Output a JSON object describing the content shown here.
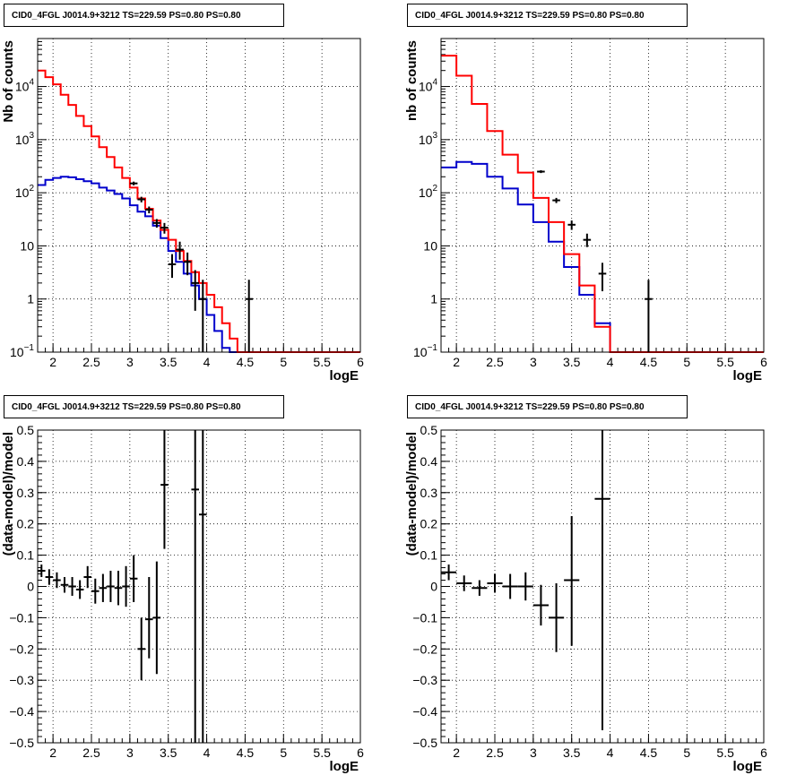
{
  "colors": {
    "data": "#000000",
    "total_model": "#ff0000",
    "source_model": "#0000cc",
    "grid": "#000000"
  },
  "chart_data": [
    {
      "id": "counts-fine",
      "type": "line",
      "title": "CID0_4FGL J0014.9+3212 TS=229.59 PS=0.80 PS=0.80",
      "xlabel": "logE",
      "ylabel": "Nb of counts",
      "yscale": "log",
      "xlim": [
        1.8,
        6.0
      ],
      "ylim": [
        0.1,
        80000
      ],
      "grid": true,
      "bin_edges": [
        1.8,
        1.9,
        2.0,
        2.1,
        2.2,
        2.3,
        2.4,
        2.5,
        2.6,
        2.7,
        2.8,
        2.9,
        3.0,
        3.1,
        3.2,
        3.3,
        3.4,
        3.5,
        3.6,
        3.7,
        3.8,
        3.9,
        4.0,
        4.1,
        4.2,
        4.3,
        4.4,
        4.5,
        4.6,
        4.7,
        4.8,
        4.9,
        5.0,
        5.1,
        5.2,
        5.3,
        5.4,
        5.5,
        5.6,
        5.7,
        5.8,
        5.9,
        6.0
      ],
      "series": [
        {
          "key": "total_model",
          "values": [
            20000,
            15000,
            11000,
            7000,
            4500,
            2800,
            1800,
            1150,
            720,
            470,
            300,
            190,
            125,
            78,
            50,
            30,
            20,
            13,
            8,
            5.2,
            3.2,
            2.0,
            1.2,
            0.7,
            0.35,
            0.18,
            0.09,
            0.09,
            0.09,
            0.09,
            0.09,
            0.09,
            0.09,
            0.09,
            0.09,
            0.09,
            0.09,
            0.09,
            0.09,
            0.09,
            0.09,
            0.09
          ]
        },
        {
          "key": "source_model",
          "values": [
            140,
            175,
            190,
            200,
            195,
            180,
            165,
            150,
            125,
            110,
            95,
            78,
            58,
            44,
            36,
            24,
            14,
            8,
            5.0,
            3.0,
            1.8,
            1.0,
            0.5,
            0.25,
            0.12,
            0.1,
            0.1,
            0.1,
            0.1,
            0.1,
            0.1,
            0.1,
            0.1,
            0.1,
            0.1,
            0.1,
            0.1,
            0.1,
            0.1,
            0.1,
            0.1,
            0.1
          ]
        }
      ],
      "points": [
        {
          "x": 3.05,
          "y": 150,
          "lo": 138,
          "hi": 162
        },
        {
          "x": 3.15,
          "y": 75,
          "lo": 66,
          "hi": 84
        },
        {
          "x": 3.25,
          "y": 48,
          "lo": 41,
          "hi": 55
        },
        {
          "x": 3.35,
          "y": 27,
          "lo": 22,
          "hi": 32
        },
        {
          "x": 3.45,
          "y": 22,
          "lo": 17,
          "hi": 27
        },
        {
          "x": 3.55,
          "y": 4.5,
          "lo": 2.5,
          "hi": 7
        },
        {
          "x": 3.65,
          "y": 8.5,
          "lo": 5.5,
          "hi": 12
        },
        {
          "x": 3.75,
          "y": 5.0,
          "lo": 2.8,
          "hi": 7.5
        },
        {
          "x": 3.85,
          "y": 2.0,
          "lo": 0.6,
          "hi": 3.5
        },
        {
          "x": 3.95,
          "y": 1.0,
          "lo": 0.1,
          "hi": 2.3
        },
        {
          "x": 4.55,
          "y": 1.0,
          "lo": 0.1,
          "hi": 2.3
        }
      ]
    },
    {
      "id": "counts-coarse",
      "type": "line",
      "title": "CID0_4FGL J0014.9+3212 TS=229.59 PS=0.80 PS=0.80",
      "xlabel": "logE",
      "ylabel": "nb of counts",
      "yscale": "log",
      "xlim": [
        1.8,
        6.0
      ],
      "ylim": [
        0.1,
        80000
      ],
      "grid": true,
      "bin_edges": [
        1.8,
        2.0,
        2.2,
        2.4,
        2.6,
        2.8,
        3.0,
        3.2,
        3.4,
        3.6,
        3.8,
        4.0,
        4.2,
        4.4,
        4.6,
        4.8,
        5.0,
        5.2,
        5.4,
        5.6,
        5.8,
        6.0
      ],
      "series": [
        {
          "key": "total_model",
          "values": [
            38000,
            16000,
            4700,
            1450,
            520,
            240,
            80,
            28,
            7,
            1.8,
            0.3,
            0.09,
            0.09,
            0.09,
            0.09,
            0.09,
            0.09,
            0.09,
            0.09,
            0.09,
            0.09
          ]
        },
        {
          "key": "source_model",
          "values": [
            300,
            380,
            350,
            200,
            120,
            60,
            28,
            12,
            4,
            1.2,
            0.35,
            0.1,
            0.1,
            0.1,
            0.1,
            0.1,
            0.1,
            0.1,
            0.1,
            0.1,
            0.1
          ]
        }
      ],
      "points": [
        {
          "x": 3.1,
          "y": 250,
          "lo": 235,
          "hi": 265
        },
        {
          "x": 3.3,
          "y": 72,
          "lo": 64,
          "hi": 80
        },
        {
          "x": 3.5,
          "y": 25,
          "lo": 20,
          "hi": 30
        },
        {
          "x": 3.7,
          "y": 13,
          "lo": 9.5,
          "hi": 17
        },
        {
          "x": 3.9,
          "y": 3.0,
          "lo": 1.4,
          "hi": 4.8
        },
        {
          "x": 4.5,
          "y": 1.0,
          "lo": 0.1,
          "hi": 2.3
        }
      ]
    },
    {
      "id": "residuals-fine",
      "type": "scatter",
      "title": "CID0_4FGL J0014.9+3212 TS=229.59 PS=0.80 PS=0.80",
      "xlabel": "logE",
      "ylabel": "(data-model)/model",
      "yscale": "linear",
      "xlim": [
        1.8,
        6.0
      ],
      "ylim": [
        -0.5,
        0.5
      ],
      "grid": true,
      "halfwidth": 0.05,
      "points": [
        {
          "x": 1.85,
          "y": 0.05,
          "lo": 0.03,
          "hi": 0.07
        },
        {
          "x": 1.95,
          "y": 0.03,
          "lo": 0.005,
          "hi": 0.055
        },
        {
          "x": 2.05,
          "y": 0.02,
          "lo": -0.005,
          "hi": 0.045
        },
        {
          "x": 2.15,
          "y": 0.005,
          "lo": -0.02,
          "hi": 0.03
        },
        {
          "x": 2.25,
          "y": 0.0,
          "lo": -0.03,
          "hi": 0.03
        },
        {
          "x": 2.35,
          "y": -0.01,
          "lo": -0.04,
          "hi": 0.02
        },
        {
          "x": 2.45,
          "y": 0.03,
          "lo": -0.005,
          "hi": 0.065
        },
        {
          "x": 2.55,
          "y": -0.015,
          "lo": -0.055,
          "hi": 0.025
        },
        {
          "x": 2.65,
          "y": -0.005,
          "lo": -0.05,
          "hi": 0.04
        },
        {
          "x": 2.75,
          "y": 0.0,
          "lo": -0.05,
          "hi": 0.05
        },
        {
          "x": 2.85,
          "y": -0.005,
          "lo": -0.06,
          "hi": 0.05
        },
        {
          "x": 2.95,
          "y": 0.0,
          "lo": -0.065,
          "hi": 0.065
        },
        {
          "x": 3.05,
          "y": 0.025,
          "lo": -0.05,
          "hi": 0.1
        },
        {
          "x": 3.15,
          "y": -0.2,
          "lo": -0.3,
          "hi": -0.1
        },
        {
          "x": 3.25,
          "y": -0.105,
          "lo": -0.23,
          "hi": 0.03
        },
        {
          "x": 3.35,
          "y": -0.1,
          "lo": -0.28,
          "hi": 0.08
        },
        {
          "x": 3.45,
          "y": 0.325,
          "lo": 0.12,
          "hi": 0.5
        },
        {
          "x": 3.85,
          "y": 0.31,
          "lo": -0.5,
          "hi": 0.5
        },
        {
          "x": 3.95,
          "y": 0.23,
          "lo": -0.5,
          "hi": 0.5
        }
      ]
    },
    {
      "id": "residuals-coarse",
      "type": "scatter",
      "title": "CID0_4FGL J0014.9+3212 TS=229.59 PS=0.80 PS=0.80",
      "xlabel": "logE",
      "ylabel": "(data-model)/model",
      "yscale": "linear",
      "xlim": [
        1.8,
        6.0
      ],
      "ylim": [
        -0.5,
        0.5
      ],
      "grid": true,
      "halfwidth": 0.1,
      "points": [
        {
          "x": 1.9,
          "y": 0.045,
          "lo": 0.02,
          "hi": 0.07
        },
        {
          "x": 2.1,
          "y": 0.01,
          "lo": -0.015,
          "hi": 0.035
        },
        {
          "x": 2.3,
          "y": -0.005,
          "lo": -0.03,
          "hi": 0.02
        },
        {
          "x": 2.5,
          "y": 0.01,
          "lo": -0.02,
          "hi": 0.04
        },
        {
          "x": 2.7,
          "y": 0.0,
          "lo": -0.04,
          "hi": 0.04
        },
        {
          "x": 2.9,
          "y": 0.0,
          "lo": -0.045,
          "hi": 0.045
        },
        {
          "x": 3.1,
          "y": -0.06,
          "lo": -0.125,
          "hi": 0.005
        },
        {
          "x": 3.3,
          "y": -0.1,
          "lo": -0.21,
          "hi": 0.01
        },
        {
          "x": 3.5,
          "y": 0.02,
          "lo": -0.19,
          "hi": 0.225
        },
        {
          "x": 3.9,
          "y": 0.28,
          "lo": -0.46,
          "hi": 0.5
        }
      ]
    }
  ],
  "ticks": {
    "x": [
      "2",
      "2.5",
      "3",
      "3.5",
      "4",
      "4.5",
      "5",
      "5.5",
      "6"
    ],
    "x_values": [
      2,
      2.5,
      3,
      3.5,
      4,
      4.5,
      5,
      5.5,
      6
    ],
    "log_y": [
      {
        "value": 0.1,
        "base": "10",
        "exp": "−1"
      },
      {
        "value": 1,
        "base": "1",
        "exp": ""
      },
      {
        "value": 10,
        "base": "10",
        "exp": ""
      },
      {
        "value": 100,
        "base": "10",
        "exp": "2"
      },
      {
        "value": 1000,
        "base": "10",
        "exp": "3"
      },
      {
        "value": 10000,
        "base": "10",
        "exp": "4"
      }
    ],
    "lin_y": [
      "−0.5",
      "−0.4",
      "−0.3",
      "−0.2",
      "−0.1",
      "0",
      "0.1",
      "0.2",
      "0.3",
      "0.4",
      "0.5"
    ],
    "lin_y_values": [
      -0.5,
      -0.4,
      -0.3,
      -0.2,
      -0.1,
      0,
      0.1,
      0.2,
      0.3,
      0.4,
      0.5
    ]
  }
}
